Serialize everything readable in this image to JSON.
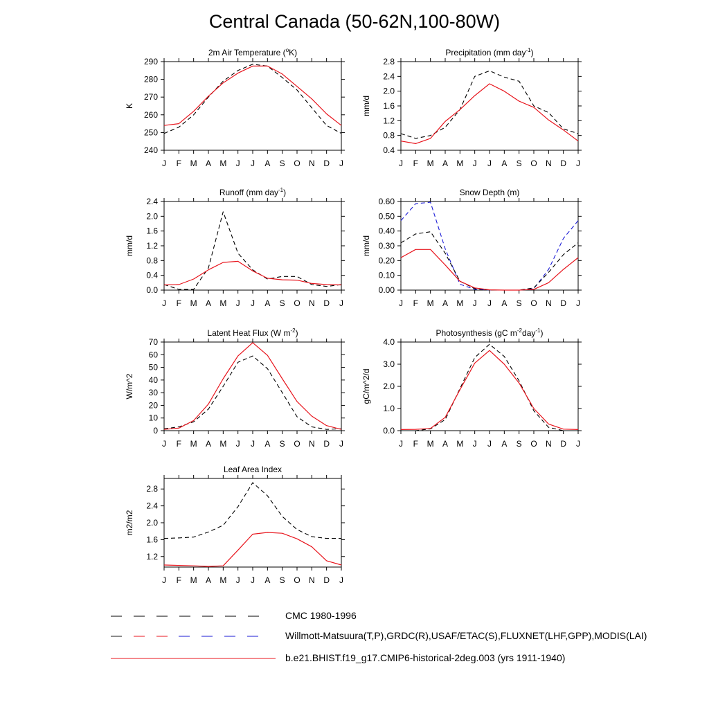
{
  "title": "Central Canada (50-62N,100-80W)",
  "months": [
    "J",
    "F",
    "M",
    "A",
    "M",
    "J",
    "J",
    "A",
    "S",
    "O",
    "N",
    "D",
    "J"
  ],
  "colors": {
    "model": "#e8141c",
    "obs1": "#000000",
    "obs2": "#1a1ad6"
  },
  "legend": [
    {
      "label": "CMC 1980-1996",
      "style": "dashed-black"
    },
    {
      "label": "Willmott-Matsuura(T,P),GRDC(R),USAF/ETAC(S),FLUXNET(LHF,GPP),MODIS(LAI)",
      "style": "dashed-mixed"
    },
    {
      "label": "b.e21.BHIST.f19_g17.CMIP6-historical-2deg.003 (yrs 1911-1940)",
      "style": "solid-red"
    }
  ],
  "chart_data": [
    {
      "type": "line",
      "name": "air-temperature",
      "title": "2m Air Temperature (°K)",
      "title_parts": [
        "2m Air Temperature (",
        "o",
        "K)"
      ],
      "ylabel": "K",
      "ylim": [
        240,
        290
      ],
      "yticks": [
        240,
        250,
        260,
        270,
        280,
        290
      ],
      "ytick_labels": [
        "240",
        "250",
        "260",
        "270",
        "280",
        "290"
      ],
      "series": [
        {
          "role": "obs1",
          "values": [
            249.5,
            253,
            260,
            270,
            279,
            285,
            288.5,
            287.5,
            281,
            274,
            264,
            254,
            249.5
          ]
        },
        {
          "role": "model",
          "values": [
            254,
            255,
            262,
            270.5,
            278,
            283.5,
            287.5,
            287.5,
            283,
            276,
            269,
            260.5,
            254
          ]
        }
      ]
    },
    {
      "type": "line",
      "name": "precipitation",
      "title": "Precipitation (mm day-1)",
      "title_parts": [
        "Precipitation (mm day",
        "-1",
        ")"
      ],
      "ylabel": "mm/d",
      "ylim": [
        0.4,
        2.8
      ],
      "yticks": [
        0.4,
        0.8,
        1.2,
        1.6,
        2.0,
        2.4,
        2.8
      ],
      "ytick_labels": [
        "0.4",
        "0.8",
        "1.2",
        "1.6",
        "2.0",
        "2.4",
        "2.8"
      ],
      "series": [
        {
          "role": "obs1",
          "values": [
            0.85,
            0.72,
            0.8,
            1.02,
            1.5,
            2.4,
            2.55,
            2.38,
            2.27,
            1.6,
            1.42,
            0.98,
            0.85
          ]
        },
        {
          "role": "model",
          "values": [
            0.65,
            0.58,
            0.72,
            1.18,
            1.5,
            1.88,
            2.2,
            2.0,
            1.73,
            1.56,
            1.22,
            0.95,
            0.65
          ]
        }
      ]
    },
    {
      "type": "line",
      "name": "runoff",
      "title": "Runoff (mm day-1)",
      "title_parts": [
        "Runoff (mm day",
        "-1",
        ")"
      ],
      "ylabel": "mm/d",
      "ylim": [
        0,
        2.4
      ],
      "yticks": [
        0,
        0.4,
        0.8,
        1.2,
        1.6,
        2.0,
        2.4
      ],
      "ytick_labels": [
        "0.0",
        "0.4",
        "0.8",
        "1.2",
        "1.6",
        "2.0",
        "2.4"
      ],
      "series": [
        {
          "role": "obs1",
          "values": [
            0.15,
            0.02,
            0.02,
            0.6,
            2.12,
            1.0,
            0.55,
            0.3,
            0.37,
            0.37,
            0.15,
            0.1,
            0.15
          ]
        },
        {
          "role": "model",
          "values": [
            0.14,
            0.15,
            0.3,
            0.55,
            0.75,
            0.78,
            0.52,
            0.32,
            0.28,
            0.27,
            0.18,
            0.15,
            0.14
          ]
        }
      ]
    },
    {
      "type": "line",
      "name": "snow-depth",
      "title": "Snow Depth (m)",
      "title_parts": [
        "Snow Depth (m)",
        "",
        ""
      ],
      "ylabel": "mm/d",
      "ylim": [
        0,
        0.6
      ],
      "yticks": [
        0,
        0.1,
        0.2,
        0.3,
        0.4,
        0.5,
        0.6
      ],
      "ytick_labels": [
        "0.00",
        "0.10",
        "0.20",
        "0.30",
        "0.40",
        "0.50",
        "0.60"
      ],
      "series": [
        {
          "role": "obs2",
          "values": [
            0.47,
            0.585,
            0.595,
            0.28,
            0.04,
            0.005,
            0,
            0,
            0,
            0.01,
            0.14,
            0.35,
            0.47
          ]
        },
        {
          "role": "obs1",
          "values": [
            0.32,
            0.38,
            0.395,
            0.25,
            0.06,
            0.01,
            0,
            0,
            0,
            0.015,
            0.12,
            0.24,
            0.32
          ]
        },
        {
          "role": "model",
          "values": [
            0.22,
            0.275,
            0.275,
            0.17,
            0.06,
            0.015,
            0.002,
            0,
            0,
            0.005,
            0.05,
            0.14,
            0.22
          ]
        }
      ]
    },
    {
      "type": "line",
      "name": "latent-heat-flux",
      "title": "Latent Heat Flux (W m-2)",
      "title_parts": [
        "Latent Heat Flux (W m",
        "-2",
        ")"
      ],
      "ylabel": "W/m^2",
      "ylim": [
        0,
        70
      ],
      "yticks": [
        0,
        10,
        20,
        30,
        40,
        50,
        60,
        70
      ],
      "ytick_labels": [
        "0",
        "10",
        "20",
        "30",
        "40",
        "50",
        "60",
        "70"
      ],
      "series": [
        {
          "role": "obs1",
          "values": [
            1.5,
            3,
            7,
            17,
            35,
            54,
            59,
            49,
            30,
            11,
            3,
            1,
            1.5
          ]
        },
        {
          "role": "model",
          "values": [
            1,
            2,
            8,
            21,
            41,
            59,
            69.5,
            59.5,
            41,
            23,
            11.5,
            4,
            1
          ]
        }
      ]
    },
    {
      "type": "line",
      "name": "photosynthesis",
      "title": "Photosynthesis (gC m-2day-1)",
      "title_parts": [
        "Photosynthesis (gC m",
        "-2",
        "day",
        "-1",
        ")"
      ],
      "ylabel": "gC/m^2/d",
      "ylim": [
        0,
        4
      ],
      "yticks": [
        0,
        1,
        2,
        3,
        4
      ],
      "ytick_labels": [
        "0.0",
        "1.0",
        "2.0",
        "3.0",
        "4.0"
      ],
      "series": [
        {
          "role": "obs1",
          "values": [
            0,
            0,
            0.08,
            0.5,
            1.9,
            3.3,
            3.9,
            3.35,
            2.25,
            0.9,
            0.15,
            0,
            0
          ]
        },
        {
          "role": "model",
          "values": [
            0.05,
            0.06,
            0.1,
            0.6,
            1.85,
            3.05,
            3.62,
            3.0,
            2.15,
            1.0,
            0.3,
            0.07,
            0.05
          ]
        }
      ]
    },
    {
      "type": "line",
      "name": "leaf-area-index",
      "title": "Leaf Area Index",
      "title_parts": [
        "Leaf Area Index",
        "",
        ""
      ],
      "ylabel": "m2/m2",
      "ylim": [
        0.95,
        3.05
      ],
      "yticks": [
        1.2,
        1.6,
        2.0,
        2.4,
        2.8
      ],
      "ytick_labels": [
        "1.2",
        "1.6",
        "2.0",
        "2.4",
        "2.8"
      ],
      "series": [
        {
          "role": "obs1",
          "values": [
            1.63,
            1.64,
            1.66,
            1.78,
            1.94,
            2.38,
            2.95,
            2.64,
            2.15,
            1.84,
            1.67,
            1.63,
            1.63
          ]
        },
        {
          "role": "model",
          "values": [
            1.0,
            0.99,
            0.98,
            0.965,
            0.98,
            1.35,
            1.73,
            1.77,
            1.75,
            1.62,
            1.43,
            1.1,
            1.0
          ]
        }
      ]
    }
  ]
}
